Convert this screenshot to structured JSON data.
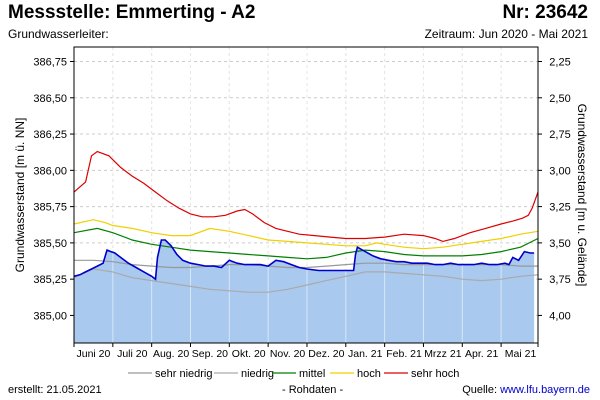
{
  "header": {
    "title": "Messstelle: Emmerting - A2",
    "nr": "Nr: 23642",
    "aquifer_label": "Grundwasserleiter:",
    "period": "Zeitraum: Jun 2020 - Mai 2021"
  },
  "footer": {
    "created": "erstellt:  21.05.2021",
    "raw": "- Rohdaten -",
    "source_prefix": "Quelle: ",
    "source_link": "www.lfu.bayern.de"
  },
  "chart_data": {
    "type": "line",
    "ylabel": "Grundwasserstand [m ü. NN]",
    "ylabel_right": "Grundwasserstand [m u. Gelände]",
    "ylim": [
      384.81,
      386.85
    ],
    "yticks": [
      385.0,
      385.25,
      385.5,
      385.75,
      386.0,
      386.25,
      386.5,
      386.75
    ],
    "ytick_labels": [
      "385,00",
      "385,25",
      "385,50",
      "385,75",
      "386,00",
      "386,25",
      "386,50",
      "386,75"
    ],
    "yticks_right": [
      2.25,
      2.5,
      2.75,
      3.0,
      3.25,
      3.5,
      3.75,
      4.0
    ],
    "ytick_labels_right": [
      "2,25",
      "2,50",
      "2,75",
      "3,00",
      "3,25",
      "3,50",
      "3,75",
      "4,00"
    ],
    "right_axis_ref": 389.0,
    "xlim": [
      0,
      11.95
    ],
    "month_ticks": [
      0.5,
      1.5,
      2.5,
      3.5,
      4.5,
      5.5,
      6.5,
      7.5,
      8.5,
      9.5,
      10.5,
      11.5
    ],
    "month_labels": [
      "Juni 20",
      "Juli 20",
      "Aug. 20",
      "Sep. 20",
      "Okt. 20",
      "Nov. 20",
      "Dez. 20",
      "Jan. 21",
      "Feb. 21",
      "Mrzz 21",
      "Apr. 21",
      "Mai 21"
    ],
    "grid": true,
    "legend_position": "bottom",
    "series": [
      {
        "name": "sehr hoch",
        "color": "#dd0000",
        "x": [
          0,
          0.3,
          0.45,
          0.6,
          0.9,
          1.2,
          1.5,
          1.8,
          2.1,
          2.4,
          2.7,
          3.0,
          3.3,
          3.6,
          3.9,
          4.2,
          4.4,
          4.6,
          4.9,
          5.2,
          5.5,
          5.8,
          6.2,
          6.6,
          7.0,
          7.5,
          8.0,
          8.5,
          9.0,
          9.3,
          9.5,
          9.8,
          10.2,
          10.6,
          11.0,
          11.3,
          11.55,
          11.7,
          11.8,
          11.95
        ],
        "y": [
          385.85,
          385.92,
          386.1,
          386.13,
          386.1,
          386.02,
          385.96,
          385.91,
          385.85,
          385.79,
          385.74,
          385.7,
          385.68,
          385.68,
          385.69,
          385.72,
          385.73,
          385.7,
          385.64,
          385.6,
          385.58,
          385.56,
          385.55,
          385.54,
          385.53,
          385.53,
          385.54,
          385.56,
          385.55,
          385.53,
          385.51,
          385.53,
          385.57,
          385.6,
          385.63,
          385.65,
          385.67,
          385.69,
          385.74,
          385.85
        ]
      },
      {
        "name": "hoch",
        "color": "#f0d000",
        "x": [
          0,
          0.5,
          0.8,
          1.0,
          1.5,
          2.0,
          2.5,
          3.0,
          3.5,
          4.0,
          4.5,
          5.0,
          5.5,
          6.0,
          6.5,
          7.0,
          7.5,
          7.8,
          8.0,
          8.5,
          9.0,
          9.5,
          10.0,
          10.5,
          11.0,
          11.5,
          11.95
        ],
        "y": [
          385.63,
          385.66,
          385.64,
          385.62,
          385.6,
          385.57,
          385.55,
          385.55,
          385.6,
          385.58,
          385.55,
          385.52,
          385.51,
          385.5,
          385.49,
          385.48,
          385.48,
          385.5,
          385.49,
          385.47,
          385.46,
          385.47,
          385.49,
          385.51,
          385.53,
          385.56,
          385.58
        ]
      },
      {
        "name": "mittel",
        "color": "#008000",
        "x": [
          0,
          0.6,
          1.0,
          1.5,
          2.0,
          2.5,
          3.0,
          3.5,
          4.0,
          4.5,
          5.0,
          5.5,
          6.0,
          6.5,
          7.0,
          7.5,
          8.0,
          8.5,
          9.0,
          9.5,
          10.0,
          10.5,
          11.0,
          11.5,
          11.95
        ],
        "y": [
          385.57,
          385.6,
          385.57,
          385.52,
          385.49,
          385.47,
          385.45,
          385.44,
          385.43,
          385.42,
          385.41,
          385.4,
          385.39,
          385.4,
          385.43,
          385.45,
          385.44,
          385.42,
          385.41,
          385.41,
          385.41,
          385.42,
          385.44,
          385.47,
          385.53
        ]
      },
      {
        "name": "niedrig",
        "color": "#aaaaaa",
        "x": [
          0,
          0.5,
          1.0,
          1.5,
          2.0,
          2.5,
          3.0,
          3.5,
          4.0,
          4.5,
          5.0,
          5.5,
          6.0,
          6.5,
          7.0,
          7.5,
          8.0,
          8.5,
          9.0,
          9.5,
          10.0,
          10.5,
          11.0,
          11.5,
          11.95
        ],
        "y": [
          385.26,
          385.32,
          385.3,
          385.26,
          385.24,
          385.22,
          385.2,
          385.18,
          385.17,
          385.16,
          385.16,
          385.18,
          385.21,
          385.24,
          385.27,
          385.3,
          385.3,
          385.29,
          385.28,
          385.27,
          385.25,
          385.24,
          385.25,
          385.27,
          385.28
        ]
      },
      {
        "name": "sehr niedrig",
        "color": "#999999",
        "x": [
          0,
          0.5,
          1.0,
          1.5,
          2.0,
          2.5,
          3.0,
          3.5,
          4.0,
          4.5,
          5.0,
          5.5,
          6.0,
          6.5,
          7.0,
          7.5,
          8.0,
          8.5,
          9.0,
          9.5,
          10.0,
          10.5,
          11.0,
          11.5,
          11.95
        ],
        "y": [
          385.38,
          385.38,
          385.37,
          385.35,
          385.34,
          385.33,
          385.33,
          385.34,
          385.35,
          385.35,
          385.34,
          385.33,
          385.33,
          385.34,
          385.35,
          385.36,
          385.36,
          385.35,
          385.35,
          385.35,
          385.35,
          385.35,
          385.35,
          385.34,
          385.34
        ]
      }
    ],
    "measured": {
      "color": "#0000cc",
      "fill": "#a9c9ee",
      "x": [
        0,
        0.15,
        0.3,
        0.45,
        0.6,
        0.75,
        0.85,
        0.95,
        1.05,
        1.2,
        1.4,
        1.6,
        1.8,
        2.0,
        2.1,
        2.15,
        2.25,
        2.35,
        2.5,
        2.65,
        2.8,
        3.0,
        3.2,
        3.4,
        3.6,
        3.8,
        4.0,
        4.2,
        4.4,
        4.6,
        4.8,
        5.0,
        5.2,
        5.4,
        5.6,
        5.8,
        6.0,
        6.3,
        6.6,
        6.9,
        7.1,
        7.2,
        7.25,
        7.3,
        7.5,
        7.7,
        7.9,
        8.1,
        8.3,
        8.5,
        8.7,
        8.9,
        9.1,
        9.3,
        9.5,
        9.7,
        9.9,
        10.1,
        10.3,
        10.5,
        10.7,
        10.9,
        11.1,
        11.2,
        11.3,
        11.45,
        11.6,
        11.75,
        11.85
      ],
      "y": [
        385.27,
        385.28,
        385.3,
        385.32,
        385.34,
        385.36,
        385.45,
        385.44,
        385.43,
        385.4,
        385.36,
        385.33,
        385.3,
        385.27,
        385.25,
        385.4,
        385.52,
        385.52,
        385.48,
        385.42,
        385.38,
        385.36,
        385.35,
        385.34,
        385.34,
        385.33,
        385.38,
        385.36,
        385.35,
        385.35,
        385.35,
        385.34,
        385.38,
        385.37,
        385.35,
        385.33,
        385.32,
        385.31,
        385.31,
        385.31,
        385.31,
        385.31,
        385.42,
        385.47,
        385.44,
        385.41,
        385.39,
        385.38,
        385.37,
        385.37,
        385.36,
        385.36,
        385.36,
        385.35,
        385.35,
        385.36,
        385.35,
        385.35,
        385.35,
        385.36,
        385.35,
        385.35,
        385.36,
        385.35,
        385.4,
        385.38,
        385.44,
        385.43,
        385.43
      ]
    },
    "legend": [
      {
        "label": "sehr niedrig",
        "color": "#999999"
      },
      {
        "label": "niedrig",
        "color": "#aaaaaa"
      },
      {
        "label": "mittel",
        "color": "#008000"
      },
      {
        "label": "hoch",
        "color": "#f0d000"
      },
      {
        "label": "sehr hoch",
        "color": "#dd0000"
      }
    ]
  }
}
